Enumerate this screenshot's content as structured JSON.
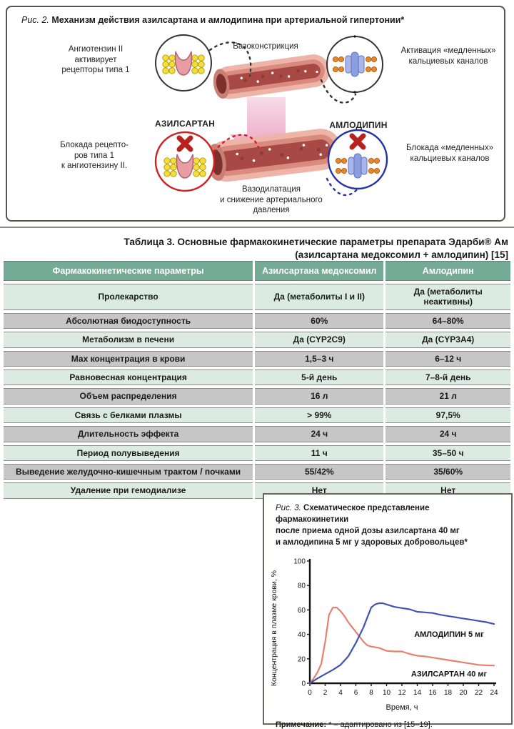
{
  "fig2": {
    "caption_prefix": "Рис. 2.",
    "caption_text": " Механизм действия азилсартана и амлодипина при артериальной гипертонии*",
    "labels": {
      "angiotensin": "Ангиотензин II\nактивирует\nрецепторы типа 1",
      "vasoconstriction": "Вазоконстрикция",
      "calcium_activation": "Активация «медленных»\nкальциевых каналов",
      "azilsartan": "АЗИЛСАРТАН",
      "amlodipine": "АМЛОДИПИН",
      "receptor_block": "Блокада рецепто-\nров типа 1\nк ангиотензину II.",
      "calcium_block": "Блокада «медленных»\nкальциевых каналов",
      "vasodilation": "Вазодилатация\nи снижение артериального\nдавления"
    }
  },
  "table": {
    "title_line1": "Таблица 3. Основные фармакокинетические параметры препарата Эдарби® Ам",
    "title_line2": "(азилсартана медоксомил + амлодипин) [15]",
    "headers": [
      "Фармакокинетические параметры",
      "Азилсартана медоксомил",
      "Амлодипин"
    ],
    "rows": [
      {
        "param": "Пролекарство",
        "azil": "Да (метаболиты I и II)",
        "amlo": "Да (метаболиты неактивны)"
      },
      {
        "param": "Абсолютная биодоступность",
        "azil": "60%",
        "amlo": "64–80%"
      },
      {
        "param": "Метаболизм в печени",
        "azil": "Да (CYP2C9)",
        "amlo": "Да (CYP3A4)"
      },
      {
        "param": "Мах концентрация в крови",
        "azil": "1,5–3 ч",
        "amlo": "6–12 ч"
      },
      {
        "param": "Равновесная концентрация",
        "azil": "5-й день",
        "amlo": "7–8-й день"
      },
      {
        "param": "Объем распределения",
        "azil": "16 л",
        "amlo": "21 л"
      },
      {
        "param": "Связь с белками плазмы",
        "azil": "> 99%",
        "amlo": "97,5%"
      },
      {
        "param": "Длительность эффекта",
        "azil": "24 ч",
        "amlo": "24 ч"
      },
      {
        "param": "Период полувыведения",
        "azil": "11 ч",
        "amlo": "35–50 ч"
      },
      {
        "param": "Выведение желудочно-кишечным трактом / почками",
        "azil": "55/42%",
        "amlo": "35/60%"
      },
      {
        "param": "Удаление при гемодиализе",
        "azil": "Нет",
        "amlo": "Нет"
      }
    ]
  },
  "fig3": {
    "caption_prefix": "Рис. 3.",
    "caption_text": " Схематическое представление фармакокинетики\nпосле приема одной дозы азилсартана 40 мг\nи амлодипина 5 мг у здоровых добровольцев*",
    "note_prefix": "Примечание:",
    "note_text": " * – адаптировано из [15–19]."
  },
  "chart_data": {
    "type": "line",
    "title": "Рис. 3. Схематическое представление фармакокинетики после приема одной дозы азилсартана 40 мг и амлодипина 5 мг у здоровых добровольцев*",
    "xlabel": "Время, ч",
    "ylabel": "Концентрация в плазме крови, %",
    "xlim": [
      0,
      24
    ],
    "ylim": [
      0,
      100
    ],
    "x_ticks": [
      0,
      2,
      4,
      6,
      8,
      10,
      12,
      14,
      16,
      18,
      20,
      22,
      24
    ],
    "y_ticks": [
      0,
      20,
      40,
      60,
      80,
      100
    ],
    "grid": false,
    "legend_position": "inline-labels",
    "series": [
      {
        "name": "АЗИЛСАРТАН 40 мг",
        "color": "#e8806f",
        "label_at": [
          13.2,
          5.5
        ],
        "points": [
          [
            0,
            0
          ],
          [
            0.5,
            4
          ],
          [
            1,
            9
          ],
          [
            1.5,
            16
          ],
          [
            2,
            34
          ],
          [
            2.5,
            56
          ],
          [
            3,
            62
          ],
          [
            3.5,
            62
          ],
          [
            4,
            59
          ],
          [
            4.5,
            55
          ],
          [
            5,
            50
          ],
          [
            5.5,
            46
          ],
          [
            6,
            42
          ],
          [
            6.5,
            38
          ],
          [
            7,
            34
          ],
          [
            7.5,
            31
          ],
          [
            8,
            30
          ],
          [
            9,
            29
          ],
          [
            10,
            26.5
          ],
          [
            11,
            26
          ],
          [
            12,
            26
          ],
          [
            13,
            24
          ],
          [
            14,
            22.5
          ],
          [
            15,
            22
          ],
          [
            16,
            21
          ],
          [
            17,
            20
          ],
          [
            18,
            19
          ],
          [
            19,
            18
          ],
          [
            20,
            17
          ],
          [
            21,
            16
          ],
          [
            22,
            15
          ],
          [
            23,
            14.7
          ],
          [
            24,
            14.5
          ]
        ]
      },
      {
        "name": "АМЛОДИПИН 5 мг",
        "color": "#4053b4",
        "label_at": [
          13.6,
          38
        ],
        "points": [
          [
            0,
            0
          ],
          [
            1,
            4
          ],
          [
            2,
            7.5
          ],
          [
            3,
            11
          ],
          [
            4,
            15
          ],
          [
            5,
            22
          ],
          [
            6,
            33
          ],
          [
            7,
            46
          ],
          [
            7.5,
            54
          ],
          [
            8,
            62
          ],
          [
            8.5,
            64.5
          ],
          [
            9,
            65.5
          ],
          [
            9.5,
            65.5
          ],
          [
            10,
            64.5
          ],
          [
            11,
            62.5
          ],
          [
            12,
            61.5
          ],
          [
            13,
            60.5
          ],
          [
            14,
            58.5
          ],
          [
            15,
            58
          ],
          [
            16,
            57.5
          ],
          [
            17,
            56
          ],
          [
            18,
            55
          ],
          [
            19,
            54
          ],
          [
            20,
            53
          ],
          [
            21,
            52
          ],
          [
            22,
            51
          ],
          [
            23,
            50
          ],
          [
            24,
            48.5
          ]
        ]
      }
    ]
  }
}
